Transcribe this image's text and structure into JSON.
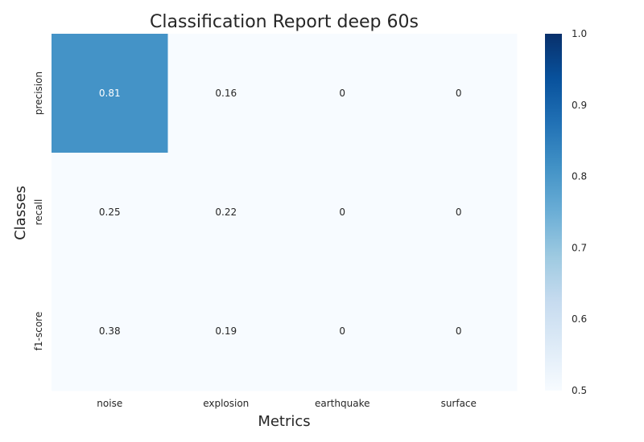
{
  "chart_data": {
    "type": "heatmap",
    "title": "Classification Report deep 60s",
    "xlabel": "Metrics",
    "ylabel": "Classes",
    "x_categories": [
      "noise",
      "explosion",
      "earthquake",
      "surface"
    ],
    "y_categories": [
      "precision",
      "recall",
      "f1-score"
    ],
    "values": [
      [
        0.81,
        0.16,
        0,
        0
      ],
      [
        0.25,
        0.22,
        0,
        0
      ],
      [
        0.38,
        0.19,
        0,
        0
      ]
    ],
    "value_labels": [
      [
        "0.81",
        "0.16",
        "0",
        "0"
      ],
      [
        "0.25",
        "0.22",
        "0",
        "0"
      ],
      [
        "0.38",
        "0.19",
        "0",
        "0"
      ]
    ],
    "colorbar": {
      "min": 0.5,
      "max": 1.0,
      "colormap": "Blues",
      "ticks": [
        "0.5",
        "0.6",
        "0.7",
        "0.8",
        "0.9",
        "1.0"
      ]
    },
    "grid": false
  }
}
